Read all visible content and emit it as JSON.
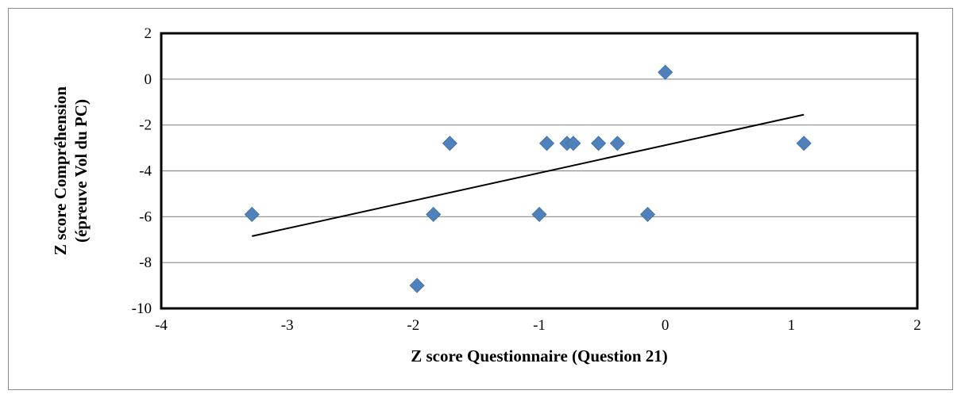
{
  "chart_data": {
    "type": "scatter",
    "title": "",
    "xlabel": "Z score Questionnaire (Question 21)",
    "ylabel_lines": [
      "Z score Compréhension",
      "(épreuve Vol du PC)"
    ],
    "xlim": [
      -4,
      2
    ],
    "ylim": [
      -10,
      2
    ],
    "x_ticks": [
      -4,
      -3,
      -2,
      -1,
      0,
      1,
      2
    ],
    "y_ticks": [
      -10,
      -8,
      -6,
      -4,
      -2,
      0,
      2
    ],
    "grid": "horizontal",
    "legend": "none",
    "marker": "diamond",
    "marker_color": "#4f81bd",
    "trendline": {
      "type": "linear",
      "color": "#000000",
      "x_start": -3.28,
      "y_start": -6.85,
      "x_end": 1.1,
      "y_end": -1.55
    },
    "points": [
      {
        "x": -3.28,
        "y": -5.9
      },
      {
        "x": -1.97,
        "y": -9.0
      },
      {
        "x": -1.84,
        "y": -5.9
      },
      {
        "x": -1.71,
        "y": -2.8
      },
      {
        "x": -1.0,
        "y": -5.9
      },
      {
        "x": -0.94,
        "y": -2.8
      },
      {
        "x": -0.78,
        "y": -2.8
      },
      {
        "x": -0.73,
        "y": -2.8
      },
      {
        "x": -0.53,
        "y": -2.8
      },
      {
        "x": -0.38,
        "y": -2.8
      },
      {
        "x": -0.14,
        "y": -5.9
      },
      {
        "x": 0.0,
        "y": 0.3
      },
      {
        "x": 1.1,
        "y": -2.8
      }
    ]
  }
}
